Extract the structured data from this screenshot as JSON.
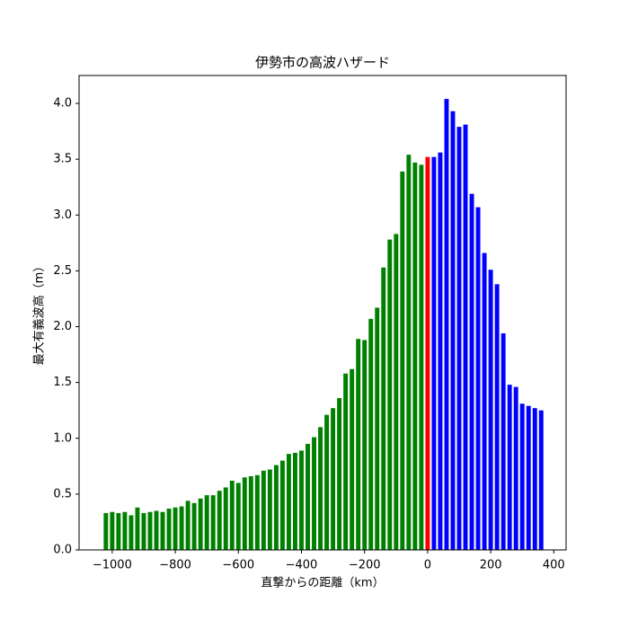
{
  "chart_data": {
    "type": "bar",
    "title": "伊勢市の高波ハザード",
    "x_label": "直撃からの距離（km）",
    "y_label": "最大有義波高（m）",
    "xlim": [
      -1105,
      439
    ],
    "ylim": [
      0,
      4.25
    ],
    "xticks": [
      {
        "value": -1000,
        "label": "−1000"
      },
      {
        "value": -800,
        "label": "−800"
      },
      {
        "value": -600,
        "label": "−600"
      },
      {
        "value": -400,
        "label": "−400"
      },
      {
        "value": -200,
        "label": "−200"
      },
      0,
      200,
      400
    ],
    "yticks": [
      {
        "value": 0,
        "label": "0.0"
      },
      0.5,
      {
        "value": 1,
        "label": "1.0"
      },
      1.5,
      {
        "value": 2,
        "label": "2.0"
      },
      2.5,
      {
        "value": 3,
        "label": "3.0"
      },
      3.5,
      {
        "value": 4,
        "label": "4.0"
      }
    ],
    "series": [
      {
        "color": "#008000",
        "x": [
          -1020,
          -1000,
          -980,
          -960,
          -940,
          -920,
          -900,
          -880,
          -860,
          -840,
          -820,
          -800,
          -780,
          -760,
          -740,
          -720,
          -700,
          -680,
          -660,
          -640,
          -620,
          -600,
          -580,
          -560,
          -540,
          -520,
          -500,
          -480,
          -460,
          -440,
          -420,
          -400,
          -380,
          -360,
          -340,
          -320,
          -300,
          -280,
          -260,
          -240,
          -220,
          -200,
          -180,
          -160,
          -140,
          -120,
          -100,
          -80,
          -60,
          -40,
          -20
        ],
        "values": [
          0.33,
          0.34,
          0.33,
          0.34,
          0.31,
          0.38,
          0.33,
          0.34,
          0.35,
          0.34,
          0.37,
          0.38,
          0.39,
          0.44,
          0.42,
          0.46,
          0.49,
          0.49,
          0.53,
          0.56,
          0.62,
          0.6,
          0.65,
          0.66,
          0.67,
          0.71,
          0.72,
          0.76,
          0.8,
          0.86,
          0.87,
          0.89,
          0.95,
          1.01,
          1.1,
          1.21,
          1.27,
          1.36,
          1.58,
          1.62,
          1.89,
          1.88,
          2.07,
          2.17,
          2.53,
          2.78,
          2.83,
          3.39,
          3.54,
          3.47,
          3.45
        ]
      },
      {
        "color": "#ff0000",
        "x": [
          0
        ],
        "values": [
          3.52
        ]
      },
      {
        "color": "#0000ff",
        "x": [
          20,
          40,
          60,
          80,
          100,
          120,
          140,
          160,
          180,
          200,
          220,
          240,
          260,
          280,
          300,
          320,
          340,
          360
        ],
        "values": [
          3.52,
          3.56,
          4.04,
          3.93,
          3.79,
          3.81,
          3.19,
          3.07,
          2.66,
          2.51,
          2.38,
          1.94,
          1.48,
          1.46,
          1.31,
          1.29,
          1.27,
          1.25
        ]
      }
    ]
  }
}
